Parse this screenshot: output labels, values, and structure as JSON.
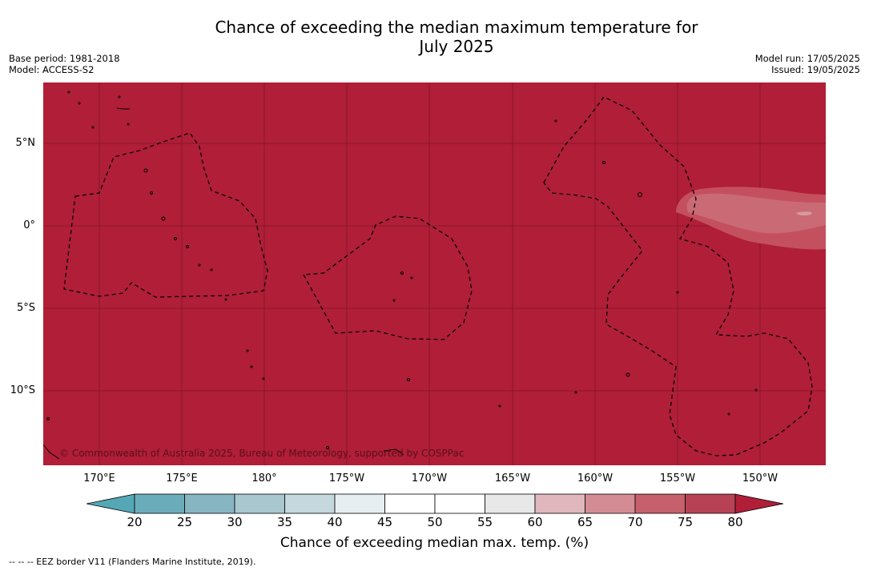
{
  "title": {
    "line1": "Chance of exceeding the median maximum temperature for",
    "line2": "July 2025"
  },
  "meta_left": {
    "base_period": "Base period: 1981-2018",
    "model": "Model: ACCESS-S2"
  },
  "meta_right": {
    "model_run": "Model run: 17/05/2025",
    "issued": "Issued: 19/05/2025"
  },
  "map": {
    "fill_color": "#b01e38",
    "attribution": "© Commonwealth of Australia 2025, Bureau of Meteorology, supported by COSPPac",
    "lat_ticks": [
      "5°N",
      "0°",
      "5°S",
      "10°S"
    ],
    "lon_ticks": [
      "170°E",
      "175°E",
      "180°",
      "175°W",
      "170°W",
      "165°W",
      "160°W",
      "155°W",
      "150°W"
    ]
  },
  "colorbar": {
    "ticks": [
      "20",
      "25",
      "30",
      "35",
      "40",
      "45",
      "50",
      "55",
      "60",
      "65",
      "70",
      "75",
      "80"
    ],
    "colors": [
      "#6bacbb",
      "#87b5c2",
      "#a8c7ce",
      "#c4d8dd",
      "#e6eef1",
      "#ffffff",
      "#ffffff",
      "#e8e8e8",
      "#dfb7bc",
      "#d38c93",
      "#c6606c",
      "#b84255"
    ],
    "under_color": "#55a7b5",
    "over_color": "#b01e38",
    "label": "Chance of exceeding median max. temp. (%)"
  },
  "footer": "--  --  -- EEZ border V11 (Flanders Marine Institute, 2019)."
}
